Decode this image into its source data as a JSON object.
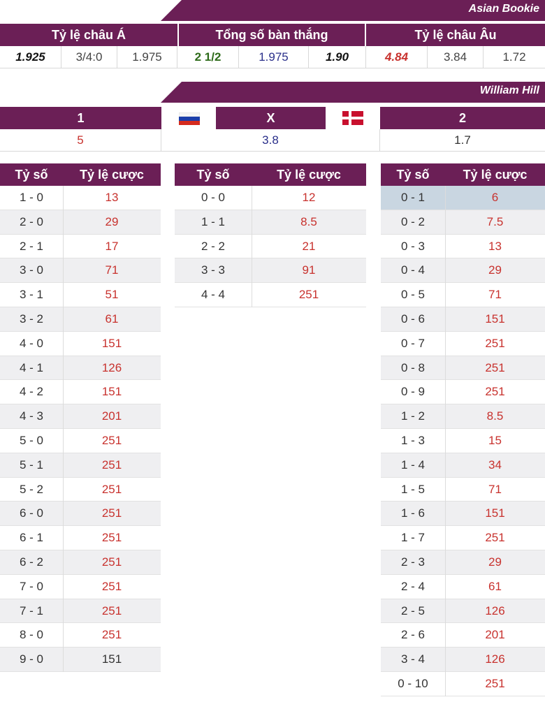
{
  "asian": {
    "bookie": "Asian Bookie",
    "headers": [
      "Tỷ lệ châu Á",
      "Tổng số bàn thắng",
      "Tỷ lệ châu Âu"
    ],
    "values": [
      {
        "text": "1.925",
        "color": "#111111",
        "style": "bold-italic"
      },
      {
        "text": "3/4:0",
        "color": "#444444",
        "style": "normal"
      },
      {
        "text": "1.975",
        "color": "#444444",
        "style": "normal"
      },
      {
        "text": "2 1/2",
        "color": "#2e6b1a",
        "style": "bold"
      },
      {
        "text": "1.975",
        "color": "#2a2f8a",
        "style": "normal"
      },
      {
        "text": "1.90",
        "color": "#111111",
        "style": "bold-italic"
      },
      {
        "text": "4.84",
        "color": "#c8322e",
        "style": "bold-italic"
      },
      {
        "text": "3.84",
        "color": "#444444",
        "style": "normal"
      },
      {
        "text": "1.72",
        "color": "#444444",
        "style": "normal"
      }
    ]
  },
  "william": {
    "bookie": "William Hill",
    "headers": [
      "1",
      "X",
      "2"
    ],
    "flags": [
      "russia-flag-icon",
      "denmark-flag-icon"
    ],
    "values": [
      {
        "text": "5",
        "color": "#c8322e"
      },
      {
        "text": "3.8",
        "color": "#2a2f8a"
      },
      {
        "text": "1.7",
        "color": "#333333"
      }
    ]
  },
  "tables": {
    "col_score": "Tỷ số",
    "col_odds": "Tỷ lệ cược",
    "home": [
      {
        "score": "1 - 0",
        "odds": "13"
      },
      {
        "score": "2 - 0",
        "odds": "29"
      },
      {
        "score": "2 - 1",
        "odds": "17"
      },
      {
        "score": "3 - 0",
        "odds": "71"
      },
      {
        "score": "3 - 1",
        "odds": "51"
      },
      {
        "score": "3 - 2",
        "odds": "61"
      },
      {
        "score": "4 - 0",
        "odds": "151"
      },
      {
        "score": "4 - 1",
        "odds": "126"
      },
      {
        "score": "4 - 2",
        "odds": "151"
      },
      {
        "score": "4 - 3",
        "odds": "201"
      },
      {
        "score": "5 - 0",
        "odds": "251"
      },
      {
        "score": "5 - 1",
        "odds": "251"
      },
      {
        "score": "5 - 2",
        "odds": "251"
      },
      {
        "score": "6 - 0",
        "odds": "251"
      },
      {
        "score": "6 - 1",
        "odds": "251"
      },
      {
        "score": "6 - 2",
        "odds": "251"
      },
      {
        "score": "7 - 0",
        "odds": "251"
      },
      {
        "score": "7 - 1",
        "odds": "251"
      },
      {
        "score": "8 - 0",
        "odds": "251"
      },
      {
        "score": "9 - 0",
        "odds": "151",
        "dark": true
      }
    ],
    "draw": [
      {
        "score": "0 - 0",
        "odds": "12"
      },
      {
        "score": "1 - 1",
        "odds": "8.5"
      },
      {
        "score": "2 - 2",
        "odds": "21"
      },
      {
        "score": "3 - 3",
        "odds": "91"
      },
      {
        "score": "4 - 4",
        "odds": "251"
      }
    ],
    "away": [
      {
        "score": "0 - 1",
        "odds": "6",
        "highlight": true
      },
      {
        "score": "0 - 2",
        "odds": "7.5"
      },
      {
        "score": "0 - 3",
        "odds": "13"
      },
      {
        "score": "0 - 4",
        "odds": "29"
      },
      {
        "score": "0 - 5",
        "odds": "71"
      },
      {
        "score": "0 - 6",
        "odds": "151"
      },
      {
        "score": "0 - 7",
        "odds": "251"
      },
      {
        "score": "0 - 8",
        "odds": "251"
      },
      {
        "score": "0 - 9",
        "odds": "251"
      },
      {
        "score": "1 - 2",
        "odds": "8.5"
      },
      {
        "score": "1 - 3",
        "odds": "15"
      },
      {
        "score": "1 - 4",
        "odds": "34"
      },
      {
        "score": "1 - 5",
        "odds": "71"
      },
      {
        "score": "1 - 6",
        "odds": "151"
      },
      {
        "score": "1 - 7",
        "odds": "251"
      },
      {
        "score": "2 - 3",
        "odds": "29"
      },
      {
        "score": "2 - 4",
        "odds": "61"
      },
      {
        "score": "2 - 5",
        "odds": "126"
      },
      {
        "score": "2 - 6",
        "odds": "201"
      },
      {
        "score": "3 - 4",
        "odds": "126"
      },
      {
        "score": "0 - 10",
        "odds": "251"
      }
    ]
  }
}
